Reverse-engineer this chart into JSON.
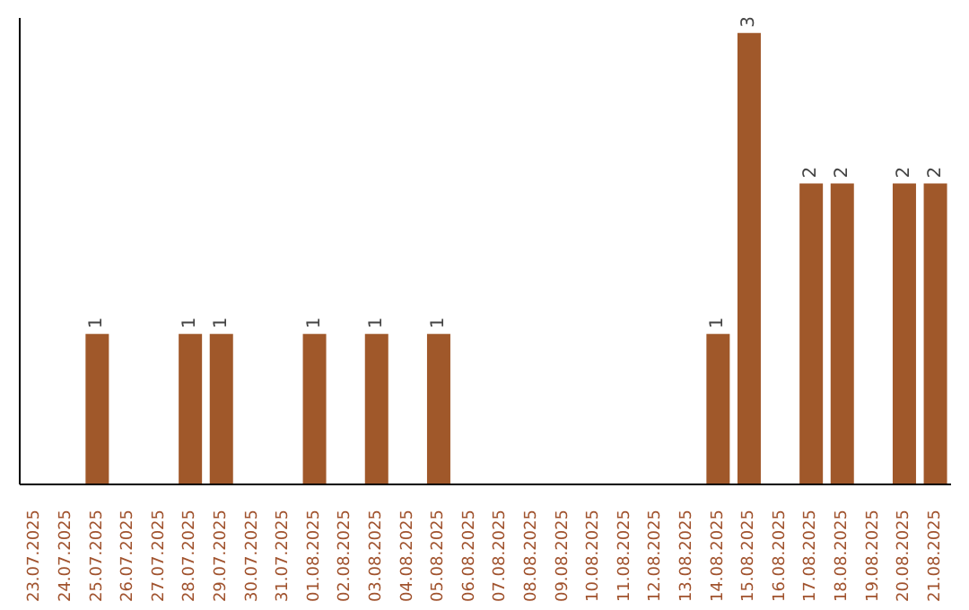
{
  "chart_data": {
    "type": "bar",
    "categories": [
      "23.07.2025",
      "24.07.2025",
      "25.07.2025",
      "26.07.2025",
      "27.07.2025",
      "28.07.2025",
      "29.07.2025",
      "30.07.2025",
      "31.07.2025",
      "01.08.2025",
      "02.08.2025",
      "03.08.2025",
      "04.08.2025",
      "05.08.2025",
      "06.08.2025",
      "07.08.2025",
      "08.08.2025",
      "09.08.2025",
      "10.08.2025",
      "11.08.2025",
      "12.08.2025",
      "13.08.2025",
      "14.08.2025",
      "15.08.2025",
      "16.08.2025",
      "17.08.2025",
      "18.08.2025",
      "19.08.2025",
      "20.08.2025",
      "21.08.2025"
    ],
    "values": [
      0,
      0,
      1,
      0,
      0,
      1,
      1,
      0,
      0,
      1,
      0,
      1,
      0,
      1,
      0,
      0,
      0,
      0,
      0,
      0,
      0,
      0,
      1,
      3,
      0,
      2,
      2,
      0,
      2,
      2
    ],
    "value_labels": [
      null,
      null,
      "1",
      null,
      null,
      "1",
      "1",
      null,
      null,
      "1",
      null,
      "1",
      null,
      "1",
      null,
      null,
      null,
      null,
      null,
      null,
      null,
      null,
      "1",
      "3",
      null,
      "2",
      "2",
      null,
      "2",
      "2"
    ],
    "color": "#a0582a",
    "ylim": [
      0,
      3.1
    ],
    "tick_labels": "x",
    "grid": false,
    "legend": false
  }
}
